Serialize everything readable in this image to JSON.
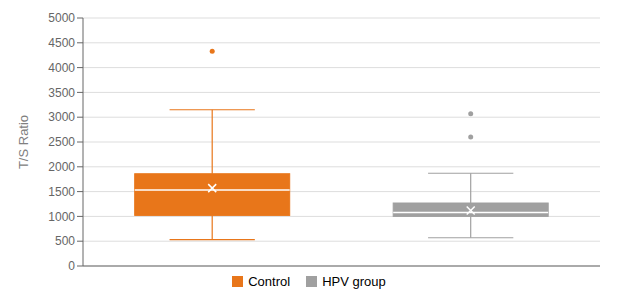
{
  "chart_data": {
    "type": "box",
    "ylabel": "T/S Ratio",
    "series": [
      {
        "name": "Control",
        "color": "#E8761A",
        "whisker_low": 530,
        "q1": 1020,
        "median": 1530,
        "q3": 1860,
        "whisker_high": 3150,
        "mean": 1570,
        "outliers": [
          4330
        ]
      },
      {
        "name": "HPV group",
        "color": "#A0A0A0",
        "whisker_low": 570,
        "q1": 1000,
        "median": 1080,
        "q3": 1270,
        "whisker_high": 1870,
        "mean": 1120,
        "outliers": [
          3070,
          2600
        ]
      }
    ],
    "ylim": [
      0,
      5000
    ],
    "yticks": [
      0,
      500,
      1000,
      1500,
      2000,
      2500,
      3000,
      3500,
      4000,
      4500,
      5000
    ],
    "grid": true,
    "legend": "bottom",
    "tick_labels": "y"
  }
}
